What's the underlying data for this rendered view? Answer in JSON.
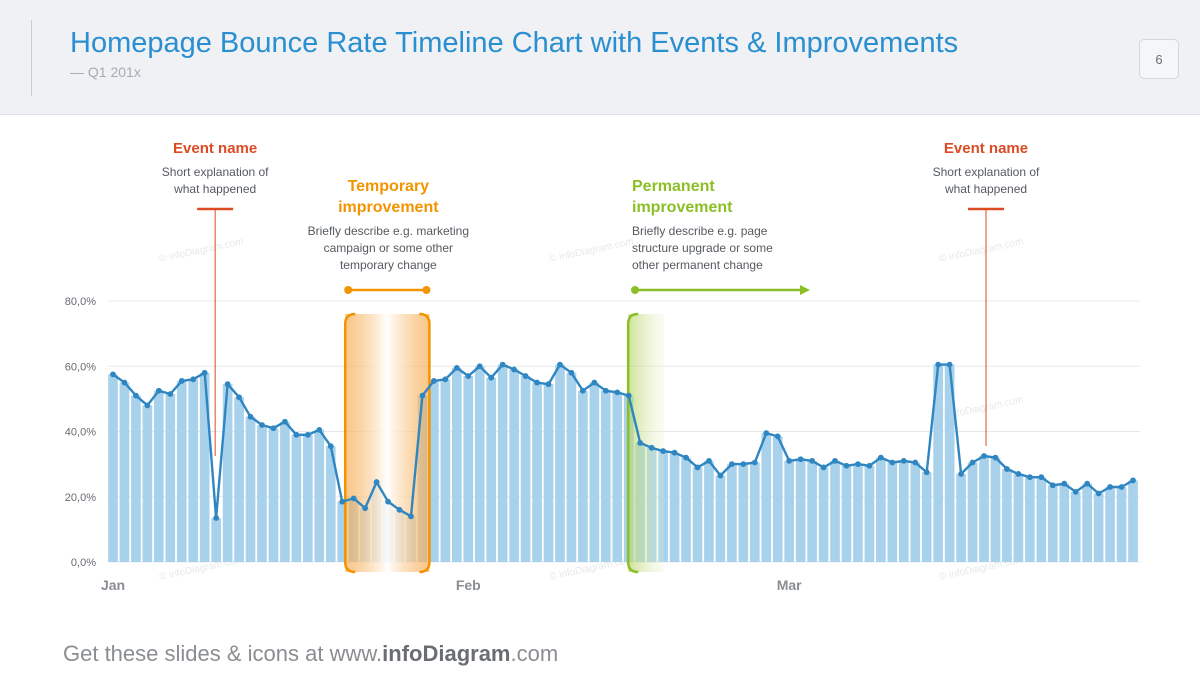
{
  "header": {
    "title": "Homepage Bounce Rate Timeline Chart with Events & Improvements",
    "subtitle": "— Q1 201x",
    "page_number": "6"
  },
  "footer": {
    "prefix": "Get these slides & icons at www.",
    "brand": "infoDiagram",
    "suffix": ".com"
  },
  "watermark": "© infoDiagram.com",
  "annotations": {
    "event1": {
      "title": "Event name",
      "lines": [
        "Short explanation of",
        "what happened"
      ],
      "point_index": 9
    },
    "temporary": {
      "title_lines": [
        "Temporary",
        "improvement"
      ],
      "lines": [
        "Briefly describe e.g. marketing",
        "campaign or some other",
        "temporary change"
      ],
      "start_index": 20,
      "end_index": 27
    },
    "permanent": {
      "title_lines": [
        "Permanent",
        "improvement"
      ],
      "lines": [
        "Briefly describe e.g. page",
        "structure upgrade or some",
        "other permanent change"
      ],
      "start_index": 46
    },
    "event2": {
      "title": "Event name",
      "lines": [
        "Short explanation of",
        "what happened"
      ],
      "point_index": 76
    }
  },
  "colors": {
    "title": "#2a8fd0",
    "event": "#dc4b23",
    "temporary": "#f29400",
    "permanent": "#8cbf26",
    "bar": "#a8d1ec",
    "line": "#2f86c1"
  },
  "chart_data": {
    "type": "area",
    "ylim": [
      0,
      80
    ],
    "yticks": [
      "0,0%",
      "20,0%",
      "40,0%",
      "60,0%",
      "80,0%"
    ],
    "x_labels": [
      {
        "label": "Jan",
        "index": 0
      },
      {
        "label": "Feb",
        "index": 31
      },
      {
        "label": "Mar",
        "index": 59
      }
    ],
    "grid": true,
    "series": [
      {
        "values": [
          57.5,
          55,
          51,
          48,
          52.5,
          51.5,
          55.5,
          56,
          58,
          13.5,
          54.5,
          50.5,
          44.5,
          42,
          41,
          43,
          39,
          39,
          40.5,
          35.5,
          18.5,
          19.5,
          16.5,
          24.5,
          18.5,
          16,
          14,
          51,
          55.5,
          56,
          59.5,
          57,
          60,
          56.5,
          60.5,
          59,
          57,
          55,
          54.5,
          60.5,
          58,
          52.5,
          55,
          52.5,
          52,
          51,
          36.5,
          35,
          34,
          33.5,
          32,
          29,
          31,
          26.5,
          30,
          30,
          30.5,
          39.5,
          38.5,
          31,
          31.5,
          31,
          29,
          31,
          29.5,
          30,
          29.5,
          32,
          30.5,
          31,
          30.5,
          27.5,
          60.5,
          60.5,
          27,
          30.5,
          32.5,
          32,
          28.5,
          27,
          26,
          26,
          23.5,
          24,
          21.5,
          24,
          21,
          23,
          23,
          25
        ]
      }
    ]
  }
}
